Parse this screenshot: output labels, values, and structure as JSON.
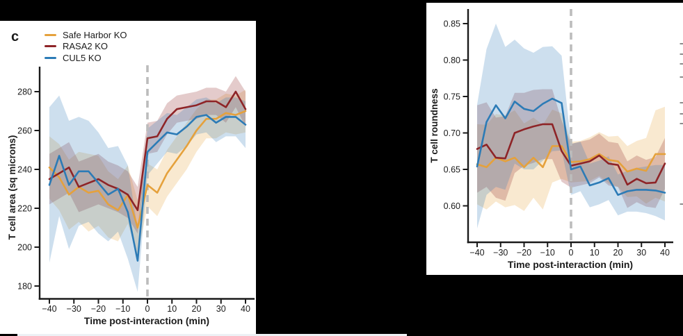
{
  "panel_label": "c",
  "colors": {
    "safe_harbor": "#E5A13C",
    "rasa2": "#8E2427",
    "cul5": "#2C7BB6",
    "band_opacity": 0.24,
    "dashed_line": "#BCBCBC",
    "axis": "#1A1A1A",
    "text": "#1A1A1A",
    "cropped_tick": "#8C8C8C"
  },
  "legend": {
    "position": "top-left",
    "items": [
      {
        "label": "Safe Harbor KO",
        "color_key": "safe_harbor"
      },
      {
        "label": "RASA2 KO",
        "color_key": "rasa2"
      },
      {
        "label": "CUL5 KO",
        "color_key": "cul5"
      }
    ]
  },
  "chart_data": [
    {
      "type": "line",
      "id": "area-chart",
      "title": "",
      "xlabel": "Time post-interaction (min)",
      "ylabel": "T cell area (sq microns)",
      "xlim": [
        -44,
        44
      ],
      "ylim": [
        173,
        293
      ],
      "grid": false,
      "vline_x": 0,
      "x": [
        -40,
        -36,
        -32,
        -28,
        -24,
        -20,
        -16,
        -12,
        -8,
        -4,
        0,
        4,
        8,
        12,
        16,
        20,
        24,
        28,
        32,
        36,
        40
      ],
      "xtick_values": [
        -40,
        -30,
        -20,
        -10,
        0,
        10,
        20,
        30,
        40
      ],
      "xtick_labels": [
        "−40",
        "−30",
        "−20",
        "−10",
        "0",
        "10",
        "20",
        "30",
        "40"
      ],
      "ytick_values": [
        180,
        200,
        220,
        240,
        260,
        280
      ],
      "ytick_labels": [
        "180",
        "200",
        "220",
        "240",
        "260",
        "280"
      ],
      "series": [
        {
          "name": "Safe Harbor KO",
          "color_key": "safe_harbor",
          "values": [
            241,
            236,
            227,
            231,
            228,
            229,
            222,
            219,
            227,
            210,
            232,
            228,
            238,
            245,
            252,
            260,
            266,
            266,
            269,
            268,
            270
          ],
          "band_halfwidth": [
            16,
            17,
            18,
            18,
            20,
            18,
            17,
            16,
            15,
            14,
            11,
            12,
            12,
            12,
            12,
            11,
            10,
            10,
            10,
            10,
            11
          ]
        },
        {
          "name": "RASA2 KO",
          "color_key": "rasa2",
          "values": [
            235,
            238,
            241,
            231,
            233,
            235,
            232,
            230,
            227,
            219,
            256,
            257,
            266,
            271,
            272,
            273,
            275,
            275,
            272,
            280,
            271
          ],
          "band_halfwidth": [
            13,
            13,
            13,
            13,
            13,
            13,
            12,
            12,
            12,
            12,
            8,
            8,
            8,
            7,
            7,
            7,
            7,
            7,
            8,
            8,
            9
          ]
        },
        {
          "name": "CUL5 KO",
          "color_key": "cul5",
          "values": [
            232,
            247,
            232,
            239,
            239,
            233,
            227,
            230,
            218,
            193,
            249,
            254,
            259,
            258,
            262,
            267,
            268,
            264,
            267,
            267,
            263
          ],
          "band_halfwidth": [
            40,
            31,
            33,
            28,
            26,
            26,
            24,
            22,
            24,
            16,
            12,
            11,
            10,
            10,
            10,
            9,
            9,
            10,
            10,
            10,
            12
          ]
        }
      ]
    },
    {
      "type": "line",
      "id": "roundness-chart",
      "title": "",
      "xlabel": "Time post-interaction (min)",
      "ylabel": "T cell roundness",
      "xlim": [
        -44,
        44
      ],
      "ylim": [
        0.55,
        0.87
      ],
      "grid": false,
      "vline_x": 0,
      "x": [
        -40,
        -36,
        -32,
        -28,
        -24,
        -20,
        -16,
        -12,
        -8,
        -4,
        0,
        4,
        8,
        12,
        16,
        20,
        24,
        28,
        32,
        36,
        40
      ],
      "xtick_values": [
        -40,
        -30,
        -20,
        -10,
        0,
        10,
        20,
        30,
        40
      ],
      "xtick_labels": [
        "−40",
        "−30",
        "−20",
        "−10",
        "0",
        "10",
        "20",
        "30",
        "40"
      ],
      "ytick_values": [
        0.6,
        0.65,
        0.7,
        0.75,
        0.8,
        0.85
      ],
      "ytick_labels": [
        "0.60",
        "0.65",
        "0.70",
        "0.75",
        "0.80",
        "0.85"
      ],
      "series": [
        {
          "name": "Safe Harbor KO",
          "color_key": "safe_harbor",
          "values": [
            0.657,
            0.653,
            0.666,
            0.661,
            0.666,
            0.653,
            0.666,
            0.653,
            0.682,
            0.682,
            0.66,
            0.661,
            0.664,
            0.671,
            0.663,
            0.661,
            0.647,
            0.651,
            0.648,
            0.671,
            0.671
          ],
          "band_halfwidth": [
            0.055,
            0.058,
            0.06,
            0.063,
            0.065,
            0.06,
            0.055,
            0.058,
            0.05,
            0.045,
            0.028,
            0.028,
            0.03,
            0.03,
            0.032,
            0.035,
            0.035,
            0.038,
            0.045,
            0.06,
            0.065
          ]
        },
        {
          "name": "RASA2 KO",
          "color_key": "rasa2",
          "values": [
            0.678,
            0.684,
            0.666,
            0.665,
            0.7,
            0.705,
            0.709,
            0.712,
            0.712,
            0.675,
            0.655,
            0.658,
            0.661,
            0.669,
            0.658,
            0.656,
            0.629,
            0.637,
            0.631,
            0.632,
            0.658
          ],
          "band_halfwidth": [
            0.06,
            0.058,
            0.055,
            0.058,
            0.055,
            0.05,
            0.05,
            0.048,
            0.048,
            0.042,
            0.03,
            0.03,
            0.03,
            0.03,
            0.03,
            0.03,
            0.032,
            0.032,
            0.032,
            0.035,
            0.035
          ]
        },
        {
          "name": "CUL5 KO",
          "color_key": "cul5",
          "values": [
            0.654,
            0.715,
            0.738,
            0.72,
            0.743,
            0.733,
            0.73,
            0.74,
            0.747,
            0.741,
            0.65,
            0.654,
            0.628,
            0.632,
            0.638,
            0.615,
            0.62,
            0.622,
            0.622,
            0.621,
            0.618
          ],
          "band_halfwidth": [
            0.085,
            0.1,
            0.112,
            0.098,
            0.085,
            0.083,
            0.08,
            0.078,
            0.072,
            0.065,
            0.035,
            0.034,
            0.03,
            0.03,
            0.03,
            0.028,
            0.028,
            0.03,
            0.032,
            0.035,
            0.038
          ]
        }
      ]
    }
  ],
  "decorations": {
    "right_edge_tick_marks_y": [
      62,
      77,
      91,
      110,
      147,
      163,
      177,
      293
    ]
  }
}
